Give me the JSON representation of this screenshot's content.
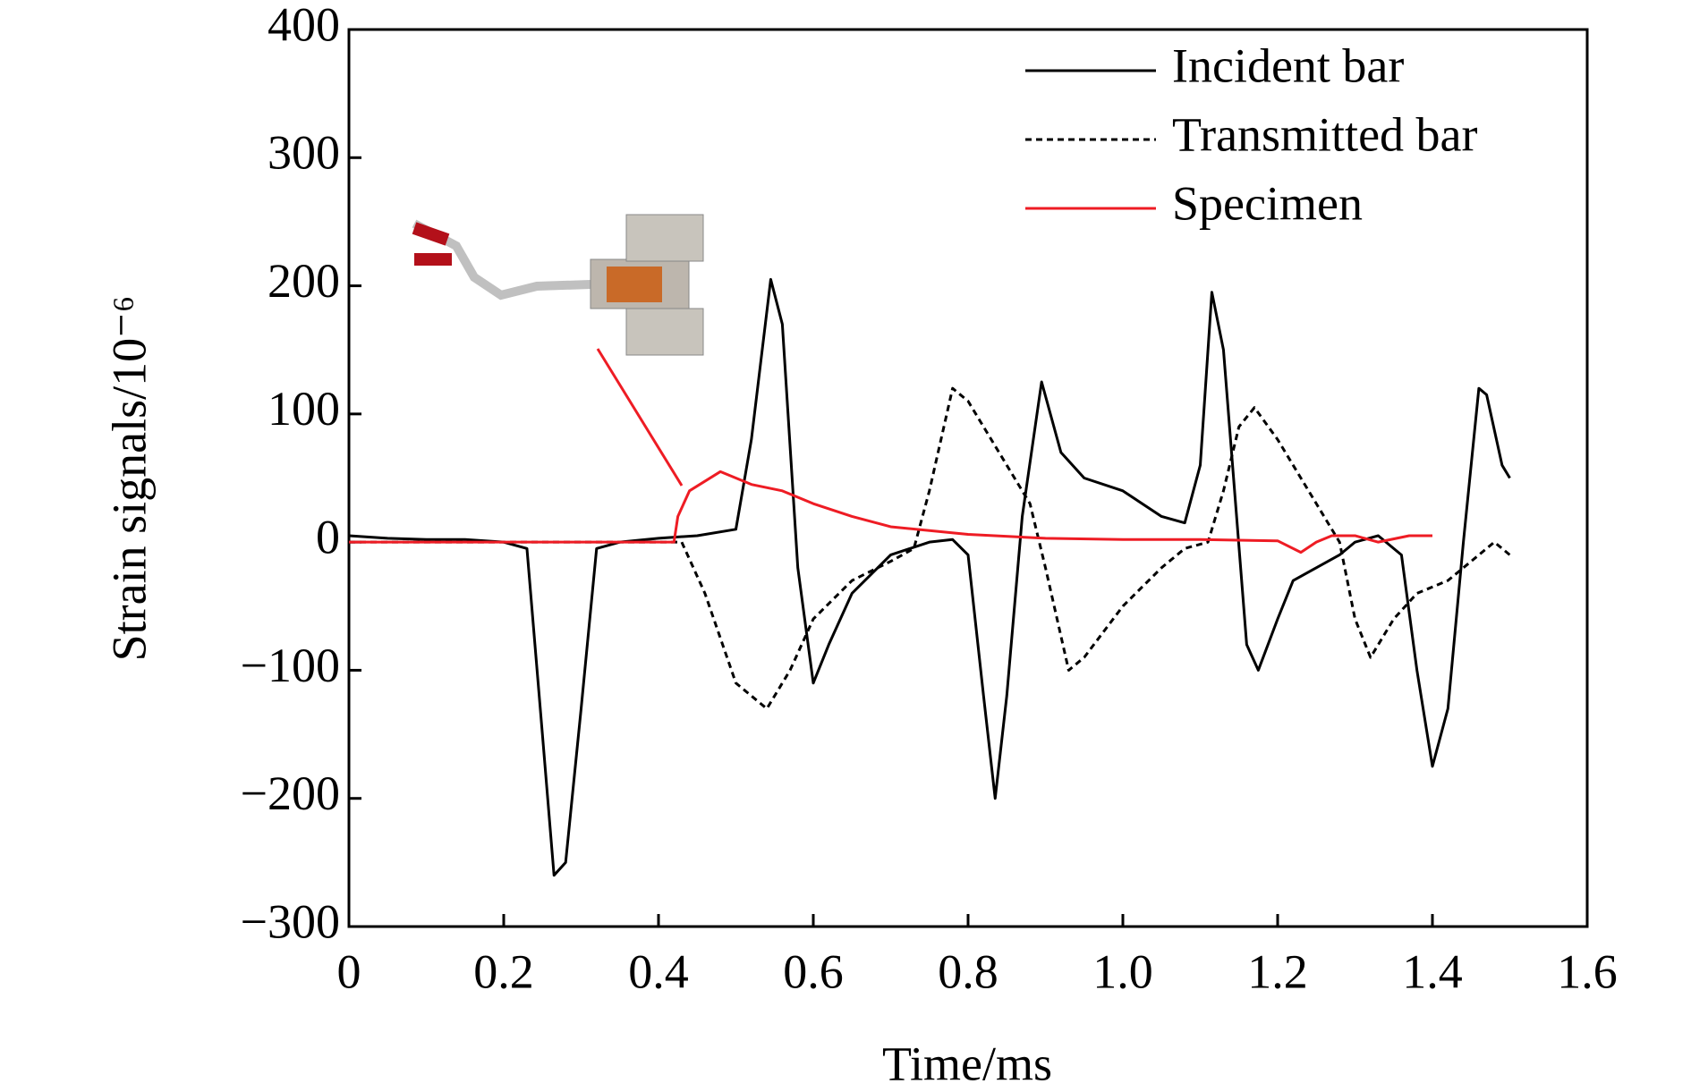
{
  "chart_data": {
    "type": "line",
    "x_label": "Time/ms",
    "y_label": "Strain signals/10⁻⁶",
    "xlim": [
      0,
      1.6
    ],
    "ylim": [
      -300,
      400
    ],
    "xticks": [
      0,
      0.2,
      0.4,
      0.6,
      0.8,
      {
        "value": 1,
        "label": "1.0"
      },
      1.2,
      1.4,
      1.6
    ],
    "yticks": [
      {
        "value": -300,
        "label": "−300"
      },
      {
        "value": -200,
        "label": "−200"
      },
      {
        "value": -100,
        "label": "−100"
      },
      0,
      100,
      200,
      300,
      400
    ],
    "legend": "upper right",
    "grid": false,
    "series": [
      {
        "name": "Incident bar",
        "color": "#000000",
        "linestyle": "solid",
        "x": [
          0,
          0.05,
          0.1,
          0.15,
          0.2,
          0.23,
          0.25,
          0.265,
          0.28,
          0.3,
          0.32,
          0.35,
          0.4,
          0.45,
          0.5,
          0.52,
          0.545,
          0.56,
          0.58,
          0.6,
          0.62,
          0.65,
          0.7,
          0.75,
          0.78,
          0.8,
          0.82,
          0.835,
          0.85,
          0.87,
          0.895,
          0.92,
          0.95,
          1.0,
          1.05,
          1.08,
          1.1,
          1.115,
          1.13,
          1.16,
          1.175,
          1.2,
          1.22,
          1.25,
          1.28,
          1.3,
          1.33,
          1.36,
          1.38,
          1.4,
          1.42,
          1.44,
          1.46,
          1.47,
          1.49,
          1.5
        ],
        "values": [
          5,
          3,
          2,
          2,
          0,
          -5,
          -150,
          -260,
          -250,
          -130,
          -5,
          0,
          3,
          5,
          10,
          80,
          205,
          170,
          -20,
          -110,
          -80,
          -40,
          -10,
          0,
          2,
          -10,
          -120,
          -200,
          -120,
          20,
          125,
          70,
          50,
          40,
          20,
          15,
          60,
          195,
          150,
          -80,
          -100,
          -60,
          -30,
          -20,
          -10,
          0,
          5,
          -10,
          -100,
          -175,
          -130,
          0,
          120,
          115,
          60,
          50
        ]
      },
      {
        "name": "Transmitted bar",
        "color": "#000000",
        "linestyle": "dashed",
        "x": [
          0,
          0.1,
          0.2,
          0.3,
          0.43,
          0.46,
          0.5,
          0.54,
          0.57,
          0.6,
          0.65,
          0.7,
          0.73,
          0.75,
          0.78,
          0.8,
          0.85,
          0.88,
          0.9,
          0.93,
          0.95,
          1.0,
          1.05,
          1.08,
          1.11,
          1.13,
          1.15,
          1.17,
          1.2,
          1.25,
          1.28,
          1.3,
          1.32,
          1.35,
          1.38,
          1.42,
          1.46,
          1.48,
          1.5
        ],
        "values": [
          0,
          0,
          0,
          0,
          0,
          -40,
          -110,
          -130,
          -100,
          -60,
          -30,
          -15,
          -5,
          40,
          120,
          110,
          60,
          30,
          -20,
          -100,
          -90,
          -50,
          -20,
          -5,
          0,
          40,
          90,
          105,
          80,
          30,
          0,
          -60,
          -90,
          -60,
          -40,
          -30,
          -10,
          0,
          -10
        ]
      },
      {
        "name": "Specimen",
        "color": "#ee1c24",
        "linestyle": "solid",
        "x": [
          0,
          0.1,
          0.2,
          0.3,
          0.42,
          0.425,
          0.44,
          0.48,
          0.52,
          0.56,
          0.6,
          0.65,
          0.7,
          0.8,
          0.9,
          1.0,
          1.1,
          1.2,
          1.23,
          1.25,
          1.27,
          1.3,
          1.33,
          1.37,
          1.4
        ],
        "values": [
          0,
          0,
          0,
          0,
          0,
          20,
          40,
          55,
          45,
          40,
          30,
          20,
          12,
          6,
          3,
          2,
          2,
          1,
          -8,
          0,
          5,
          5,
          0,
          5,
          5
        ]
      }
    ]
  }
}
